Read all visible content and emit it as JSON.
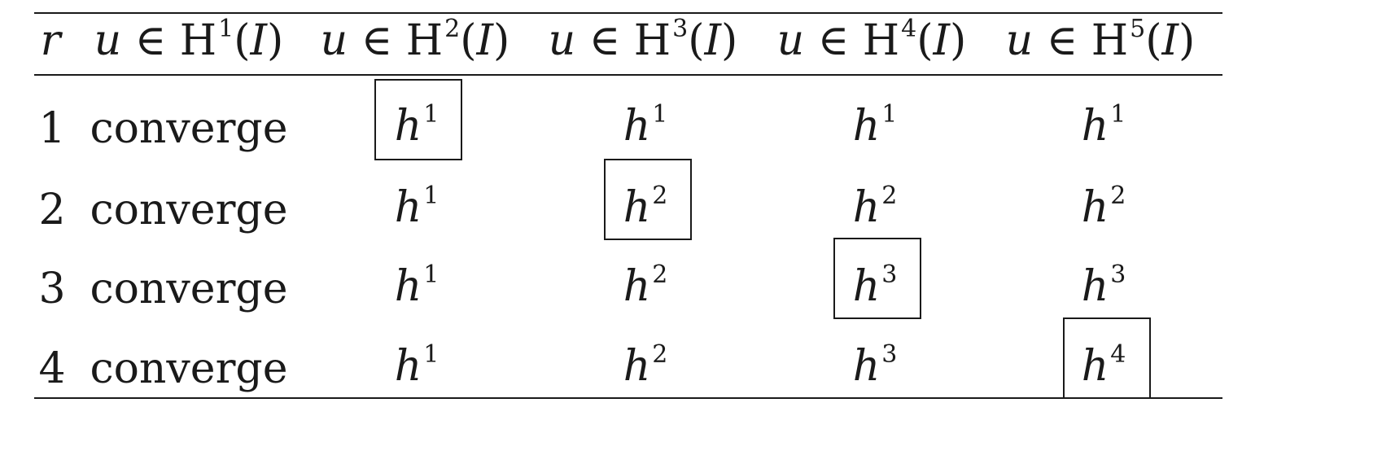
{
  "table": {
    "header": {
      "r": "r",
      "cols": [
        {
          "var": "u",
          "rel": "∈",
          "space": "H",
          "order": "1",
          "arg": "I"
        },
        {
          "var": "u",
          "rel": "∈",
          "space": "H",
          "order": "2",
          "arg": "I"
        },
        {
          "var": "u",
          "rel": "∈",
          "space": "H",
          "order": "3",
          "arg": "I"
        },
        {
          "var": "u",
          "rel": "∈",
          "space": "H",
          "order": "4",
          "arg": "I"
        },
        {
          "var": "u",
          "rel": "∈",
          "space": "H",
          "order": "5",
          "arg": "I"
        }
      ]
    },
    "rows": [
      {
        "r": "1",
        "first": "converge",
        "cells": [
          {
            "base": "h",
            "exp": "1",
            "boxed": true
          },
          {
            "base": "h",
            "exp": "1"
          },
          {
            "base": "h",
            "exp": "1"
          },
          {
            "base": "h",
            "exp": "1"
          }
        ]
      },
      {
        "r": "2",
        "first": "converge",
        "cells": [
          {
            "base": "h",
            "exp": "1"
          },
          {
            "base": "h",
            "exp": "2",
            "boxed": true
          },
          {
            "base": "h",
            "exp": "2"
          },
          {
            "base": "h",
            "exp": "2"
          }
        ]
      },
      {
        "r": "3",
        "first": "converge",
        "cells": [
          {
            "base": "h",
            "exp": "1"
          },
          {
            "base": "h",
            "exp": "2"
          },
          {
            "base": "h",
            "exp": "3",
            "boxed": true
          },
          {
            "base": "h",
            "exp": "3"
          }
        ]
      },
      {
        "r": "4",
        "first": "converge",
        "cells": [
          {
            "base": "h",
            "exp": "1"
          },
          {
            "base": "h",
            "exp": "2"
          },
          {
            "base": "h",
            "exp": "3"
          },
          {
            "base": "h",
            "exp": "4",
            "boxed": true
          }
        ]
      }
    ]
  }
}
